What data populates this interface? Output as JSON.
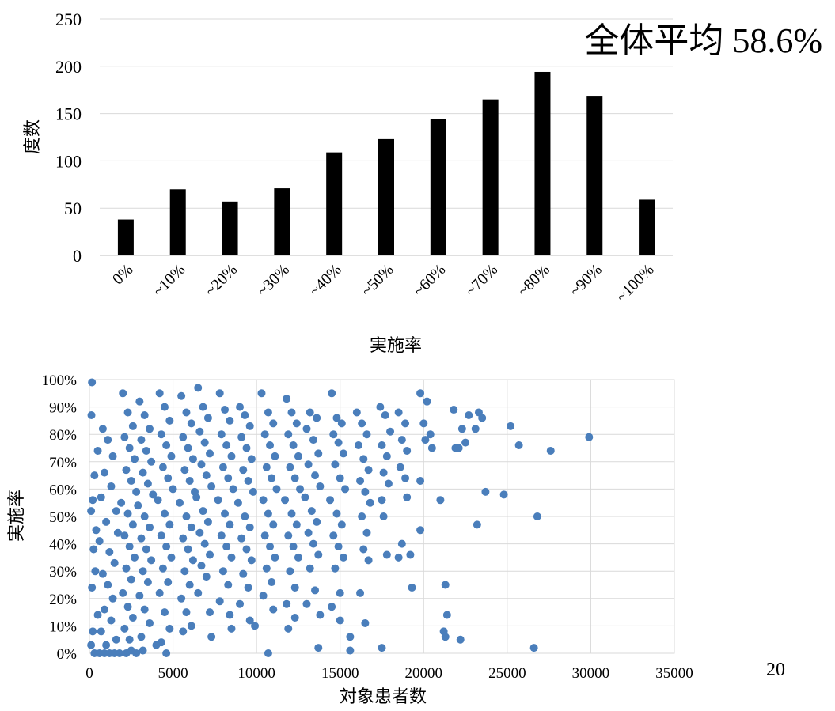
{
  "page_number": "20",
  "annotation": {
    "label": "全体平均",
    "value": "58.6%"
  },
  "colors": {
    "bar": "#000000",
    "point": "#4a7ebb",
    "grid": "#d9d9d9",
    "axis": "#bfbfbf"
  },
  "chart_data": [
    {
      "type": "bar",
      "xlabel": "実施率",
      "ylabel": "度数",
      "categories": [
        "0%",
        "~10%",
        "~20%",
        "~30%",
        "~40%",
        "~50%",
        "~60%",
        "~70%",
        "~80%",
        "~90%",
        "~100%"
      ],
      "values": [
        38,
        70,
        57,
        71,
        109,
        123,
        144,
        165,
        194,
        168,
        59
      ],
      "ylim": [
        0,
        250
      ],
      "yticks": [
        "0",
        "50",
        "100",
        "150",
        "200",
        "250"
      ],
      "grid": true
    },
    {
      "type": "scatter",
      "xlabel": "対象患者数",
      "ylabel": "実施率",
      "xlim": [
        0,
        35000
      ],
      "ylim": [
        0,
        100
      ],
      "xticks": [
        "0",
        "5000",
        "10000",
        "15000",
        "20000",
        "25000",
        "30000",
        "35000"
      ],
      "yticks": [
        "0%",
        "10%",
        "20%",
        "30%",
        "40%",
        "50%",
        "60%",
        "70%",
        "80%",
        "90%",
        "100%"
      ],
      "grid": true,
      "points": [
        [
          150,
          99
        ],
        [
          120,
          87
        ],
        [
          500,
          74
        ],
        [
          300,
          65
        ],
        [
          200,
          56
        ],
        [
          100,
          52
        ],
        [
          400,
          45
        ],
        [
          250,
          38
        ],
        [
          350,
          30
        ],
        [
          150,
          24
        ],
        [
          500,
          14
        ],
        [
          200,
          8
        ],
        [
          100,
          3
        ],
        [
          300,
          0
        ],
        [
          600,
          0
        ],
        [
          900,
          0
        ],
        [
          1200,
          0
        ],
        [
          1500,
          0
        ],
        [
          1800,
          0
        ],
        [
          2200,
          0
        ],
        [
          2500,
          1
        ],
        [
          2800,
          0
        ],
        [
          3200,
          1
        ],
        [
          4000,
          3
        ],
        [
          4600,
          0
        ],
        [
          800,
          82
        ],
        [
          1100,
          78
        ],
        [
          1400,
          72
        ],
        [
          900,
          66
        ],
        [
          1300,
          61
        ],
        [
          700,
          57
        ],
        [
          1600,
          52
        ],
        [
          1000,
          48
        ],
        [
          1700,
          44
        ],
        [
          600,
          41
        ],
        [
          1200,
          37
        ],
        [
          1500,
          33
        ],
        [
          800,
          29
        ],
        [
          1100,
          25
        ],
        [
          1400,
          20
        ],
        [
          900,
          16
        ],
        [
          1300,
          12
        ],
        [
          700,
          8
        ],
        [
          1600,
          5
        ],
        [
          1000,
          3
        ],
        [
          2000,
          95
        ],
        [
          2300,
          88
        ],
        [
          2600,
          83
        ],
        [
          2100,
          79
        ],
        [
          2400,
          75
        ],
        [
          2700,
          71
        ],
        [
          2200,
          67
        ],
        [
          2500,
          63
        ],
        [
          2800,
          59
        ],
        [
          1900,
          55
        ],
        [
          2300,
          51
        ],
        [
          2600,
          47
        ],
        [
          2100,
          43
        ],
        [
          2400,
          39
        ],
        [
          2700,
          35
        ],
        [
          2200,
          31
        ],
        [
          2500,
          27
        ],
        [
          2000,
          22
        ],
        [
          2300,
          17
        ],
        [
          2600,
          13
        ],
        [
          2100,
          9
        ],
        [
          2400,
          5
        ],
        [
          3000,
          92
        ],
        [
          3300,
          87
        ],
        [
          3600,
          82
        ],
        [
          3100,
          78
        ],
        [
          3400,
          74
        ],
        [
          3700,
          70
        ],
        [
          3200,
          66
        ],
        [
          3500,
          62
        ],
        [
          3800,
          58
        ],
        [
          2900,
          54
        ],
        [
          3300,
          50
        ],
        [
          3600,
          46
        ],
        [
          3100,
          42
        ],
        [
          3400,
          38
        ],
        [
          3700,
          34
        ],
        [
          3200,
          30
        ],
        [
          3500,
          26
        ],
        [
          3000,
          21
        ],
        [
          3300,
          16
        ],
        [
          3600,
          11
        ],
        [
          3100,
          6
        ],
        [
          4200,
          95
        ],
        [
          4500,
          90
        ],
        [
          4800,
          85
        ],
        [
          4300,
          80
        ],
        [
          4600,
          76
        ],
        [
          4900,
          72
        ],
        [
          4400,
          68
        ],
        [
          4700,
          64
        ],
        [
          5000,
          60
        ],
        [
          4100,
          56
        ],
        [
          4500,
          51
        ],
        [
          4800,
          47
        ],
        [
          4300,
          43
        ],
        [
          4600,
          39
        ],
        [
          4900,
          35
        ],
        [
          4400,
          31
        ],
        [
          4700,
          26
        ],
        [
          4200,
          22
        ],
        [
          4500,
          15
        ],
        [
          4800,
          9
        ],
        [
          4300,
          4
        ],
        [
          5500,
          94
        ],
        [
          5800,
          88
        ],
        [
          6100,
          84
        ],
        [
          5600,
          79
        ],
        [
          5900,
          75
        ],
        [
          6200,
          71
        ],
        [
          5700,
          67
        ],
        [
          6000,
          63
        ],
        [
          6300,
          59
        ],
        [
          5400,
          55
        ],
        [
          5800,
          50
        ],
        [
          6100,
          46
        ],
        [
          5600,
          42
        ],
        [
          5900,
          38
        ],
        [
          6200,
          34
        ],
        [
          5700,
          30
        ],
        [
          6000,
          25
        ],
        [
          5500,
          20
        ],
        [
          5800,
          15
        ],
        [
          6100,
          10
        ],
        [
          5600,
          8
        ],
        [
          6500,
          97
        ],
        [
          6800,
          90
        ],
        [
          7100,
          86
        ],
        [
          6600,
          81
        ],
        [
          6900,
          77
        ],
        [
          7200,
          73
        ],
        [
          6700,
          69
        ],
        [
          7000,
          65
        ],
        [
          7300,
          61
        ],
        [
          6400,
          57
        ],
        [
          6800,
          52
        ],
        [
          7100,
          48
        ],
        [
          6600,
          44
        ],
        [
          6900,
          40
        ],
        [
          7200,
          36
        ],
        [
          6700,
          32
        ],
        [
          7000,
          28
        ],
        [
          6500,
          22
        ],
        [
          7200,
          15
        ],
        [
          7300,
          6
        ],
        [
          7800,
          95
        ],
        [
          8100,
          89
        ],
        [
          8400,
          85
        ],
        [
          7900,
          80
        ],
        [
          8200,
          76
        ],
        [
          8500,
          72
        ],
        [
          8000,
          68
        ],
        [
          8300,
          64
        ],
        [
          8600,
          60
        ],
        [
          7700,
          56
        ],
        [
          8100,
          51
        ],
        [
          8400,
          47
        ],
        [
          7900,
          43
        ],
        [
          8200,
          39
        ],
        [
          8500,
          35
        ],
        [
          8000,
          30
        ],
        [
          8300,
          25
        ],
        [
          7800,
          19
        ],
        [
          8400,
          14
        ],
        [
          8500,
          9
        ],
        [
          9000,
          90
        ],
        [
          9300,
          87
        ],
        [
          9600,
          83
        ],
        [
          9100,
          79
        ],
        [
          9400,
          75
        ],
        [
          9700,
          71
        ],
        [
          9200,
          67
        ],
        [
          9500,
          63
        ],
        [
          9800,
          59
        ],
        [
          8900,
          55
        ],
        [
          9300,
          50
        ],
        [
          9600,
          46
        ],
        [
          9100,
          42
        ],
        [
          9400,
          38
        ],
        [
          9700,
          34
        ],
        [
          9200,
          29
        ],
        [
          9500,
          24
        ],
        [
          9000,
          18
        ],
        [
          9600,
          12
        ],
        [
          9900,
          10
        ],
        [
          10300,
          95
        ],
        [
          10700,
          88
        ],
        [
          11000,
          84
        ],
        [
          10500,
          80
        ],
        [
          10800,
          76
        ],
        [
          11100,
          72
        ],
        [
          10600,
          68
        ],
        [
          10900,
          64
        ],
        [
          11200,
          60
        ],
        [
          10400,
          56
        ],
        [
          10700,
          51
        ],
        [
          11000,
          47
        ],
        [
          10500,
          43
        ],
        [
          10800,
          39
        ],
        [
          11100,
          35
        ],
        [
          10600,
          31
        ],
        [
          10900,
          26
        ],
        [
          10400,
          21
        ],
        [
          11000,
          16
        ],
        [
          10700,
          0
        ],
        [
          11800,
          93
        ],
        [
          12100,
          88
        ],
        [
          12400,
          84
        ],
        [
          11900,
          80
        ],
        [
          12200,
          76
        ],
        [
          12500,
          72
        ],
        [
          12000,
          68
        ],
        [
          12300,
          64
        ],
        [
          12600,
          60
        ],
        [
          11700,
          56
        ],
        [
          12100,
          51
        ],
        [
          12400,
          47
        ],
        [
          11900,
          43
        ],
        [
          12200,
          39
        ],
        [
          12500,
          35
        ],
        [
          12000,
          30
        ],
        [
          12300,
          24
        ],
        [
          11800,
          18
        ],
        [
          12300,
          13
        ],
        [
          11900,
          9
        ],
        [
          13200,
          88
        ],
        [
          13600,
          86
        ],
        [
          13000,
          82
        ],
        [
          13400,
          78
        ],
        [
          13700,
          73
        ],
        [
          13100,
          69
        ],
        [
          13500,
          65
        ],
        [
          13800,
          61
        ],
        [
          12900,
          57
        ],
        [
          13300,
          52
        ],
        [
          13600,
          48
        ],
        [
          13100,
          44
        ],
        [
          13400,
          40
        ],
        [
          13700,
          36
        ],
        [
          13200,
          31
        ],
        [
          13500,
          23
        ],
        [
          13000,
          18
        ],
        [
          13800,
          14
        ],
        [
          13700,
          2
        ],
        [
          14500,
          95
        ],
        [
          14800,
          86
        ],
        [
          15100,
          84
        ],
        [
          14600,
          80
        ],
        [
          14900,
          77
        ],
        [
          15200,
          73
        ],
        [
          14700,
          69
        ],
        [
          15000,
          64
        ],
        [
          15300,
          60
        ],
        [
          14400,
          56
        ],
        [
          14800,
          51
        ],
        [
          15100,
          47
        ],
        [
          14600,
          43
        ],
        [
          14900,
          39
        ],
        [
          15200,
          35
        ],
        [
          14700,
          31
        ],
        [
          15000,
          22
        ],
        [
          14500,
          17
        ],
        [
          15000,
          12
        ],
        [
          15600,
          6
        ],
        [
          15600,
          1
        ],
        [
          16000,
          88
        ],
        [
          16300,
          84
        ],
        [
          16600,
          80
        ],
        [
          16100,
          76
        ],
        [
          16400,
          71
        ],
        [
          16700,
          67
        ],
        [
          16200,
          63
        ],
        [
          16500,
          59
        ],
        [
          16800,
          55
        ],
        [
          16300,
          50
        ],
        [
          16600,
          44
        ],
        [
          16400,
          38
        ],
        [
          16700,
          34
        ],
        [
          16200,
          22
        ],
        [
          16500,
          11
        ],
        [
          17400,
          90
        ],
        [
          17700,
          87
        ],
        [
          18000,
          81
        ],
        [
          17500,
          76
        ],
        [
          17800,
          72
        ],
        [
          17600,
          66
        ],
        [
          17900,
          62
        ],
        [
          17500,
          56
        ],
        [
          17600,
          50
        ],
        [
          17800,
          36
        ],
        [
          17500,
          2
        ],
        [
          18500,
          88
        ],
        [
          18900,
          84
        ],
        [
          18700,
          78
        ],
        [
          19000,
          74
        ],
        [
          18600,
          68
        ],
        [
          18900,
          64
        ],
        [
          19000,
          57
        ],
        [
          18700,
          40
        ],
        [
          19200,
          36
        ],
        [
          18500,
          35
        ],
        [
          19300,
          24
        ],
        [
          19800,
          95
        ],
        [
          20200,
          92
        ],
        [
          20000,
          84
        ],
        [
          20400,
          80
        ],
        [
          20100,
          78
        ],
        [
          20500,
          75
        ],
        [
          19800,
          63
        ],
        [
          19800,
          45
        ],
        [
          21000,
          56
        ],
        [
          21300,
          25
        ],
        [
          21400,
          14
        ],
        [
          21200,
          8
        ],
        [
          21300,
          6
        ],
        [
          22200,
          5
        ],
        [
          21800,
          89
        ],
        [
          21900,
          75
        ],
        [
          22100,
          75
        ],
        [
          22300,
          82
        ],
        [
          22700,
          87
        ],
        [
          23100,
          82
        ],
        [
          23300,
          88
        ],
        [
          23500,
          86
        ],
        [
          22500,
          77
        ],
        [
          23200,
          47
        ],
        [
          23700,
          59
        ],
        [
          24800,
          58
        ],
        [
          25200,
          83
        ],
        [
          25700,
          76
        ],
        [
          26600,
          2
        ],
        [
          26800,
          50
        ],
        [
          27600,
          74
        ],
        [
          29900,
          79
        ]
      ]
    }
  ]
}
